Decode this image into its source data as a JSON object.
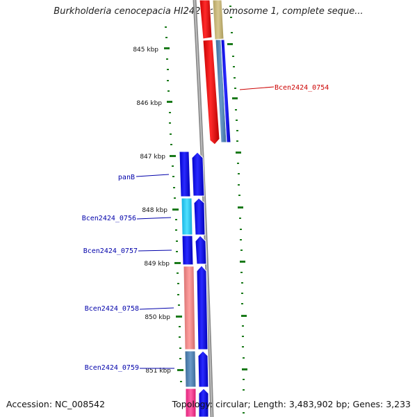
{
  "header": {
    "title": "Burkholderia cenocepacia HI2424 chromosome 1, complete seque..."
  },
  "footer": {
    "accession": "Accession: NC_008542",
    "topology": "Topology: circular; Length: 3,483,902 bp; Genes: 3,233"
  },
  "ruler": {
    "ticks": [
      "845 kbp",
      "846 kbp",
      "847 kbp",
      "848 kbp",
      "849 kbp",
      "850 kbp",
      "851 kbp"
    ]
  },
  "genes": [
    {
      "label": "Bcen2424_0754",
      "color": "#cc0000",
      "strand": "reverse"
    },
    {
      "label": "panB",
      "color": "#0000aa",
      "strand": "forward"
    },
    {
      "label": "Bcen2424_0756",
      "color": "#0000aa",
      "strand": "forward"
    },
    {
      "label": "Bcen2424_0757",
      "color": "#0000aa",
      "strand": "forward"
    },
    {
      "label": "Bcen2424_0758",
      "color": "#0000aa",
      "strand": "forward"
    },
    {
      "label": "Bcen2424_0759",
      "color": "#0000aa",
      "strand": "forward"
    }
  ],
  "colors": {
    "backbone": "#8a8a8a",
    "tick": "#1a7a1a",
    "cds_forward": "#0a0af0",
    "cds_reverse": "#ee0000",
    "cog_khaki": "#c8b878",
    "cog_steelblue": "#4a7aa8",
    "cog_cyan": "#22c8f0",
    "cog_salmon": "#f08080",
    "cog_pink": "#f0308a"
  }
}
